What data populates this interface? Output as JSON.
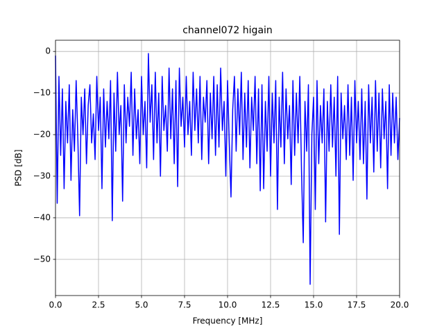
{
  "chart_data": {
    "type": "line",
    "title": "channel072 higain",
    "x_label": "Frequency [MHz]",
    "y_label": "PSD [dB]",
    "xlim": [
      0,
      20
    ],
    "ylim": [
      -58.7,
      2.7
    ],
    "xticks": [
      {
        "value": 0,
        "label": "0.0"
      },
      2.5,
      {
        "value": 5,
        "label": "5.0"
      },
      7.5,
      {
        "value": 10,
        "label": "10.0"
      },
      12.5,
      {
        "value": 15,
        "label": "15.0"
      },
      17.5,
      {
        "value": 20,
        "label": "20.0"
      }
    ],
    "yticks": [
      0,
      -10,
      -20,
      -30,
      -40,
      -50
    ],
    "grid": true,
    "x": [
      0,
      0.1,
      0.2,
      0.3,
      0.4,
      0.5,
      0.6,
      0.7,
      0.8,
      0.9,
      1,
      1.1,
      1.2,
      1.3,
      1.4,
      1.5,
      1.6,
      1.7,
      1.8,
      1.9,
      2,
      2.1,
      2.2,
      2.3,
      2.4,
      2.5,
      2.6,
      2.7,
      2.8,
      2.9,
      3,
      3.1,
      3.2,
      3.3,
      3.4,
      3.5,
      3.6,
      3.7,
      3.8,
      3.9,
      4,
      4.1,
      4.2,
      4.3,
      4.4,
      4.5,
      4.6,
      4.7,
      4.8,
      4.9,
      5,
      5.1,
      5.2,
      5.3,
      5.4,
      5.5,
      5.6,
      5.7,
      5.8,
      5.9,
      6,
      6.1,
      6.2,
      6.3,
      6.4,
      6.5,
      6.6,
      6.7,
      6.8,
      6.9,
      7,
      7.1,
      7.2,
      7.3,
      7.4,
      7.5,
      7.6,
      7.7,
      7.8,
      7.9,
      8,
      8.1,
      8.2,
      8.3,
      8.4,
      8.5,
      8.6,
      8.7,
      8.8,
      8.9,
      9,
      9.1,
      9.2,
      9.3,
      9.4,
      9.5,
      9.6,
      9.7,
      9.8,
      9.9,
      10,
      10.1,
      10.2,
      10.3,
      10.4,
      10.5,
      10.6,
      10.7,
      10.8,
      10.9,
      11,
      11.1,
      11.2,
      11.3,
      11.4,
      11.5,
      11.6,
      11.7,
      11.8,
      11.9,
      12,
      12.1,
      12.2,
      12.3,
      12.4,
      12.5,
      12.6,
      12.7,
      12.8,
      12.9,
      13,
      13.1,
      13.2,
      13.3,
      13.4,
      13.5,
      13.6,
      13.7,
      13.8,
      13.9,
      14,
      14.1,
      14.2,
      14.3,
      14.4,
      14.5,
      14.6,
      14.7,
      14.8,
      14.9,
      15,
      15.1,
      15.2,
      15.3,
      15.4,
      15.5,
      15.6,
      15.7,
      15.8,
      15.9,
      16,
      16.1,
      16.2,
      16.3,
      16.4,
      16.5,
      16.6,
      16.7,
      16.8,
      16.9,
      17,
      17.1,
      17.2,
      17.3,
      17.4,
      17.5,
      17.6,
      17.7,
      17.8,
      17.9,
      18,
      18.1,
      18.2,
      18.3,
      18.4,
      18.5,
      18.6,
      18.7,
      18.8,
      18.9,
      19,
      19.1,
      19.2,
      19.3,
      19.4,
      19.5,
      19.6,
      19.7,
      19.8,
      19.9,
      20
    ],
    "series": [
      {
        "color": "#0000ff",
        "values": [
          -1,
          -36.5,
          -6,
          -25,
          -9,
          -33,
          -12,
          -22,
          -8,
          -31,
          -14,
          -24,
          -7,
          -21,
          -39.5,
          -11,
          -20,
          -9,
          -27,
          -13,
          -8,
          -22,
          -15,
          -26,
          -6,
          -19,
          -11,
          -33,
          -9,
          -23,
          -12,
          -21,
          -7,
          -40.7,
          -10,
          -24,
          -5,
          -20,
          -13,
          -36,
          -8,
          -22,
          -11,
          -18,
          -5,
          -25,
          -9,
          -21,
          -14,
          -27,
          -6,
          -20,
          -12,
          -28,
          -0.5,
          -17,
          -8,
          -26,
          -5,
          -22,
          -10,
          -30,
          -6,
          -19,
          -13,
          -24,
          -4,
          -21,
          -9,
          -27,
          -7,
          -32.5,
          -4,
          -18,
          -11,
          -23,
          -6,
          -20,
          -12,
          -25,
          -5,
          -19,
          -9,
          -22,
          -6,
          -26,
          -11,
          -17,
          -7,
          -27,
          -10,
          -21,
          -6,
          -25,
          -8,
          -23,
          -4,
          -19,
          -12,
          -30,
          -7,
          -22,
          -35,
          -14,
          -6,
          -24,
          -9,
          -20,
          -5,
          -26,
          -10,
          -23,
          -7,
          -28,
          -11,
          -19,
          -6,
          -27,
          -9,
          -33.5,
          -8,
          -33,
          -12,
          -24,
          -6,
          -30,
          -10,
          -22,
          -7,
          -38,
          -11,
          -23,
          -5,
          -27,
          -9,
          -21,
          -13,
          -32,
          -7,
          -25,
          -10,
          -22,
          -6,
          -29,
          -46,
          -12,
          -24,
          -8,
          -56,
          -20,
          -11,
          -38,
          -7,
          -27,
          -13,
          -22,
          -9,
          -41,
          -12,
          -24,
          -8,
          -23,
          -11,
          -30,
          -6,
          -44,
          -10,
          -21,
          -13,
          -26,
          -8,
          -25,
          -11,
          -31,
          -7,
          -22,
          -12,
          -26,
          -9,
          -27,
          -12,
          -35.5,
          -8,
          -22,
          -11,
          -29,
          -7,
          -24,
          -10,
          -28,
          -9,
          -21,
          -12,
          -33,
          -8,
          -25,
          -10,
          -22,
          -11,
          -26,
          -16
        ]
      }
    ]
  }
}
